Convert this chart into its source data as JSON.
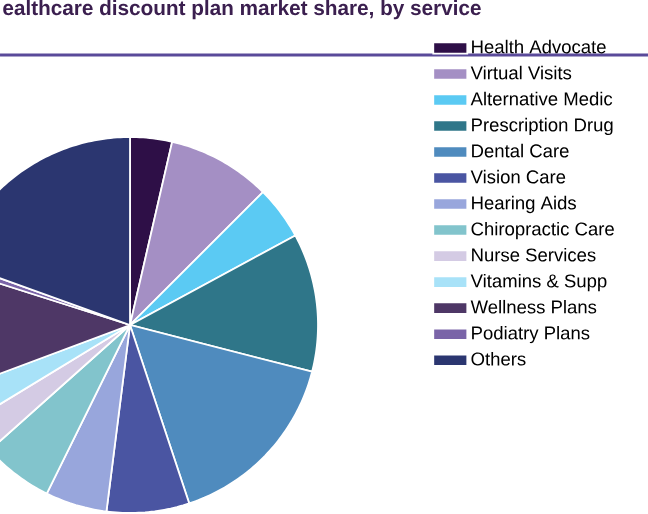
{
  "chart_data": {
    "type": "pie",
    "title": "ealthcare discount plan market share, by service",
    "categories": [
      "Health Advocate",
      "Virtual Visits",
      "Alternative Medic",
      "Prescription Drug",
      "Dental Care",
      "Vision Care",
      "Hearing Aids",
      "Chiropractic Care",
      "Nurse Services",
      "Vitamins & Supp",
      "Wellness Plans",
      "Podiatry Plans",
      "Others"
    ],
    "values": [
      3.6,
      8.9,
      4.6,
      11.9,
      15.9,
      7.1,
      5.3,
      6.1,
      2.9,
      3.0,
      10.6,
      0.6,
      19.5
    ],
    "colors": [
      "#2e0f47",
      "#a48fc4",
      "#5bcaf3",
      "#2f7689",
      "#4f8bbe",
      "#4a55a2",
      "#98a6dc",
      "#82c4cc",
      "#d4cbe4",
      "#a8e2f8",
      "#4e3766",
      "#7a64a8",
      "#2b3670"
    ],
    "legend": "right"
  }
}
